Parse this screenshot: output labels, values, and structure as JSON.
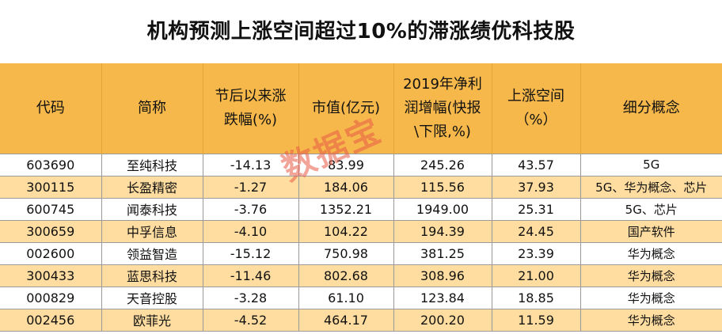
{
  "title": "机构预测上涨空间超过10%的滞涨绩优科技股",
  "columns": [
    "代码",
    "简称",
    "节后以来涨\n跌幅(%)",
    "市值(亿元)",
    "2019年净利\n润增幅(快报\n\\下限,%)",
    "上涨空间\n（%）",
    "细分概念"
  ],
  "rows": [
    [
      "603690",
      "至纯科技",
      "-14.13",
      "83.99",
      "245.26",
      "43.57",
      "5G"
    ],
    [
      "300115",
      "长盈精密",
      "-1.27",
      "184.06",
      "115.56",
      "37.93",
      "5G、华为概念、芯片"
    ],
    [
      "600745",
      "闻泰科技",
      "-3.76",
      "1352.21",
      "1949.00",
      "25.31",
      "5G、芯片"
    ],
    [
      "300659",
      "中孚信息",
      "-4.10",
      "104.22",
      "194.39",
      "24.45",
      "国产软件"
    ],
    [
      "002600",
      "领益智造",
      "-15.12",
      "750.98",
      "381.25",
      "23.39",
      "华为概念"
    ],
    [
      "300433",
      "蓝思科技",
      "-11.46",
      "802.68",
      "308.96",
      "21.00",
      "华为概念"
    ],
    [
      "000829",
      "天音控股",
      "-3.28",
      "61.10",
      "123.84",
      "18.85",
      "华为概念"
    ],
    [
      "002456",
      "欧菲光",
      "-4.52",
      "464.17",
      "200.20",
      "11.59",
      "华为概念"
    ]
  ],
  "watermark": "数据宝",
  "colors": {
    "header_bg": "#F6B84A",
    "stripe_bg": "#FFDDA0",
    "watermark": "#E85A46"
  }
}
